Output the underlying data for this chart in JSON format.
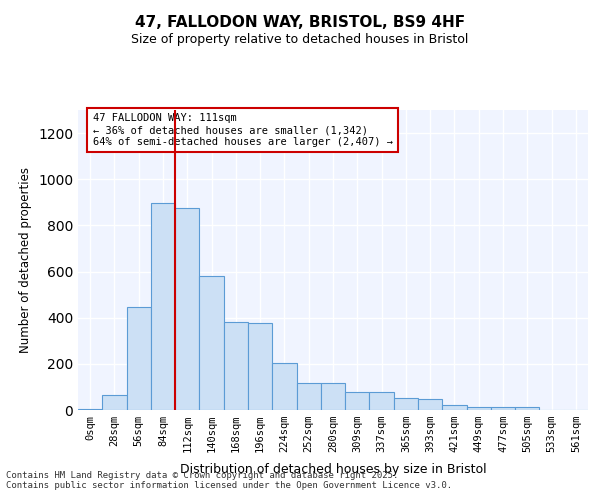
{
  "title_line1": "47, FALLODON WAY, BRISTOL, BS9 4HF",
  "title_line2": "Size of property relative to detached houses in Bristol",
  "xlabel": "Distribution of detached houses by size in Bristol",
  "ylabel": "Number of detached properties",
  "footer_line1": "Contains HM Land Registry data © Crown copyright and database right 2025.",
  "footer_line2": "Contains public sector information licensed under the Open Government Licence v3.0.",
  "bin_labels": [
    "0sqm",
    "28sqm",
    "56sqm",
    "84sqm",
    "112sqm",
    "140sqm",
    "168sqm",
    "196sqm",
    "224sqm",
    "252sqm",
    "280sqm",
    "309sqm",
    "337sqm",
    "365sqm",
    "393sqm",
    "421sqm",
    "449sqm",
    "477sqm",
    "505sqm",
    "533sqm",
    "561sqm"
  ],
  "bar_values": [
    5,
    65,
    445,
    895,
    875,
    580,
    380,
    378,
    205,
    118,
    118,
    80,
    80,
    50,
    48,
    22,
    15,
    12,
    15,
    0,
    0
  ],
  "bar_color": "#cce0f5",
  "bar_edge_color": "#5b9bd5",
  "background_color": "#f0f4ff",
  "grid_color": "#ffffff",
  "property_line_x": 4,
  "property_sqm": 111,
  "annotation_text": "47 FALLODON WAY: 111sqm\n← 36% of detached houses are smaller (1,342)\n64% of semi-detached houses are larger (2,407) →",
  "annotation_box_color": "#ffffff",
  "annotation_box_edge": "#cc0000",
  "vertical_line_color": "#cc0000",
  "ylim": [
    0,
    1300
  ],
  "yticks": [
    0,
    200,
    400,
    600,
    800,
    1000,
    1200
  ]
}
